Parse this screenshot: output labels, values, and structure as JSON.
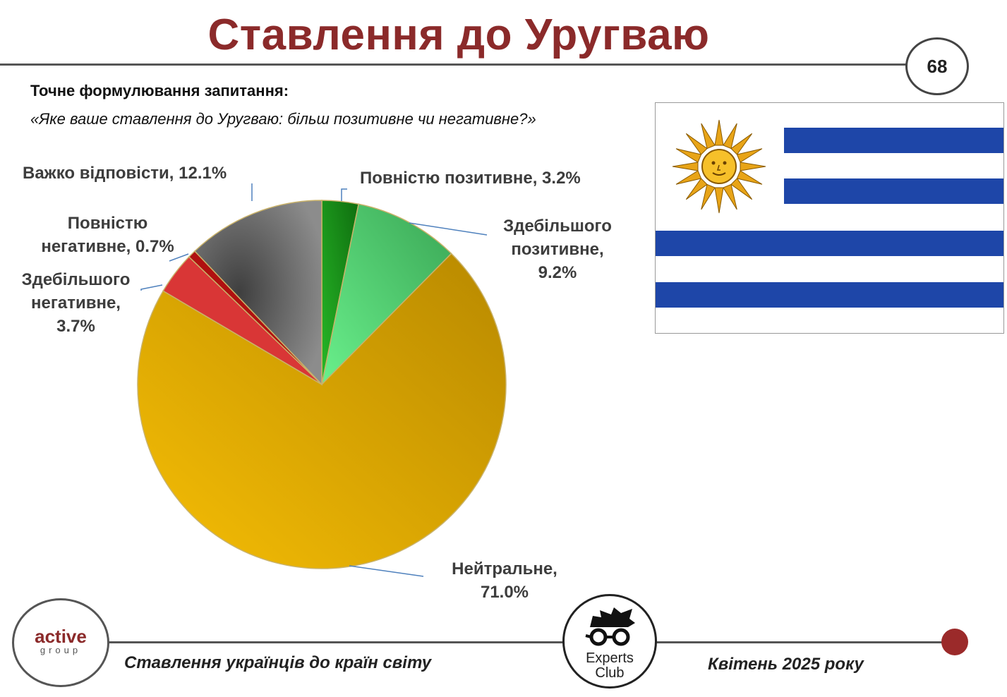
{
  "header": {
    "title": "Ставлення до Уругваю",
    "page_number": "68"
  },
  "question": {
    "label": "Точне формулювання запитання:",
    "text": "«Яке ваше ставлення до Уругваю: більш позитивне чи негативне?»"
  },
  "chart_data": {
    "type": "pie",
    "title": "",
    "slices": [
      {
        "label": "Повністю позитивне",
        "value": 3.2,
        "color": "#1a9e1a",
        "display": [
          "Повністю позитивне, 3.2%"
        ]
      },
      {
        "label": "Здебільшого позитивне",
        "value": 9.2,
        "color": "#4fd67a",
        "display": [
          "Здебільшого",
          "позитивне,",
          "9.2%"
        ]
      },
      {
        "label": "Нейтральне",
        "value": 71.0,
        "color": "#e6ad08",
        "display": [
          "Нейтральне,",
          "71.0%"
        ]
      },
      {
        "label": "Здебільшого негативне",
        "value": 3.7,
        "color": "#d93636",
        "display": [
          "Здебільшого",
          "негативне,",
          "3.7%"
        ]
      },
      {
        "label": "Повністю негативне",
        "value": 0.7,
        "color": "#b01010",
        "display": [
          "Повністю",
          "негативне, 0.7%"
        ]
      },
      {
        "label": "Важко відповісти",
        "value": 12.1,
        "color": "#6e6e6e",
        "display": [
          "Важко відповісти, 12.1%"
        ]
      }
    ]
  },
  "footer": {
    "left_text": "Ставлення українців до країн світу",
    "right_text": "Квітень 2025 року",
    "logo_left_line1": "active",
    "logo_left_line2": "group",
    "logo_center_line1": "Experts",
    "logo_center_line2": "Club",
    "accent": "#8b2a2a"
  }
}
